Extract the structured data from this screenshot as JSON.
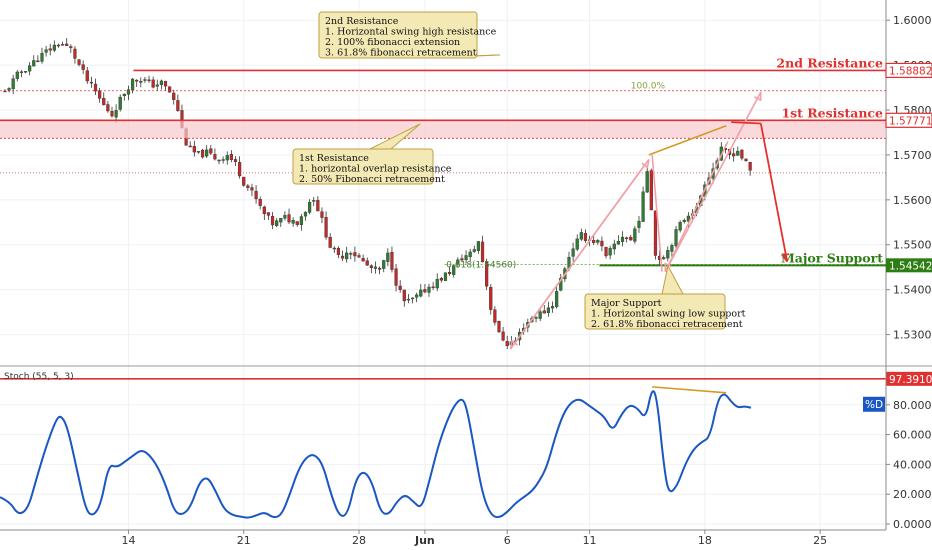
{
  "chart_data": [
    {
      "type": "candlestick",
      "panel": "price",
      "ylim": [
        1.523,
        1.6045
      ],
      "y_ticks": [
        1.53,
        1.54,
        1.55,
        1.56,
        1.57,
        1.58,
        1.59,
        1.6
      ],
      "y_tick_labels": [
        "1.53000",
        "1.54000",
        "1.55000",
        "1.56000",
        "1.57000",
        "1.58000",
        "1.59000",
        "1.60000"
      ],
      "x_ticks": [
        {
          "label": "14",
          "day": 14
        },
        {
          "label": "21",
          "day": 21
        },
        {
          "label": "28",
          "day": 28
        },
        {
          "label": "Jun",
          "day": 32
        },
        {
          "label": "6",
          "day": 37
        },
        {
          "label": "11",
          "day": 42
        },
        {
          "label": "18",
          "day": 49
        },
        {
          "label": "25",
          "day": 56
        }
      ],
      "x_range": [
        6.2,
        60.0
      ],
      "close_path": [
        [
          6.5,
          1.584
        ],
        [
          7.3,
          1.588
        ],
        [
          8.2,
          1.5905
        ],
        [
          9.0,
          1.593
        ],
        [
          9.8,
          1.595
        ],
        [
          10.5,
          1.5935
        ],
        [
          11.0,
          1.59
        ],
        [
          11.5,
          1.5865
        ],
        [
          12.0,
          1.584
        ],
        [
          12.5,
          1.581
        ],
        [
          13.0,
          1.579
        ],
        [
          13.6,
          1.583
        ],
        [
          14.2,
          1.5865
        ],
        [
          14.8,
          1.587
        ],
        [
          15.4,
          1.5855
        ],
        [
          16.0,
          1.586
        ],
        [
          16.5,
          1.584
        ],
        [
          17.0,
          1.58
        ],
        [
          17.3,
          1.575
        ],
        [
          17.6,
          1.5715
        ],
        [
          18.2,
          1.57
        ],
        [
          18.8,
          1.5705
        ],
        [
          19.4,
          1.569
        ],
        [
          20.0,
          1.57
        ],
        [
          20.5,
          1.568
        ],
        [
          21.0,
          1.564
        ],
        [
          21.6,
          1.561
        ],
        [
          22.2,
          1.557
        ],
        [
          22.8,
          1.5545
        ],
        [
          23.5,
          1.556
        ],
        [
          24.2,
          1.555
        ],
        [
          24.8,
          1.558
        ],
        [
          25.2,
          1.561
        ],
        [
          25.7,
          1.556
        ],
        [
          26.2,
          1.55
        ],
        [
          26.8,
          1.547
        ],
        [
          27.4,
          1.549
        ],
        [
          28.0,
          1.547
        ],
        [
          28.6,
          1.545
        ],
        [
          29.2,
          1.544
        ],
        [
          29.8,
          1.548
        ],
        [
          30.3,
          1.541
        ],
        [
          30.8,
          1.537
        ],
        [
          31.4,
          1.538
        ],
        [
          32.0,
          1.54
        ],
        [
          32.8,
          1.542
        ],
        [
          33.5,
          1.544
        ],
        [
          34.2,
          1.547
        ],
        [
          34.8,
          1.548
        ],
        [
          35.3,
          1.551
        ],
        [
          35.6,
          1.544
        ],
        [
          36.0,
          1.536
        ],
        [
          36.5,
          1.53
        ],
        [
          37.0,
          1.528
        ],
        [
          37.5,
          1.5285
        ],
        [
          38.0,
          1.532
        ],
        [
          38.6,
          1.534
        ],
        [
          39.2,
          1.535
        ],
        [
          39.8,
          1.537
        ],
        [
          40.3,
          1.543
        ],
        [
          40.9,
          1.549
        ],
        [
          41.5,
          1.552
        ],
        [
          42.1,
          1.551
        ],
        [
          42.6,
          1.5505
        ],
        [
          43.0,
          1.547
        ],
        [
          43.5,
          1.55
        ],
        [
          44.0,
          1.552
        ],
        [
          44.5,
          1.551
        ],
        [
          45.0,
          1.556
        ],
        [
          45.3,
          1.562
        ],
        [
          45.6,
          1.569
        ],
        [
          45.9,
          1.548
        ],
        [
          46.3,
          1.547
        ],
        [
          46.8,
          1.549
        ],
        [
          47.4,
          1.554
        ],
        [
          48.0,
          1.557
        ],
        [
          48.5,
          1.558
        ],
        [
          49.0,
          1.564
        ],
        [
          49.5,
          1.567
        ],
        [
          50.0,
          1.571
        ],
        [
          50.5,
          1.57
        ],
        [
          51.0,
          1.571
        ],
        [
          51.5,
          1.568
        ],
        [
          51.8,
          1.566
        ]
      ]
    },
    {
      "type": "line",
      "panel": "oscillator",
      "title": "Stoch (55, 5, 3)",
      "ylim": [
        -4,
        106
      ],
      "y_ticks": [
        0,
        20,
        40,
        60,
        80
      ],
      "y_tick_labels": [
        "0.0000",
        "20.0000",
        "40.0000",
        "60.0000",
        "80.0000"
      ],
      "series": [
        {
          "name": "%D",
          "color": "#1a56c4",
          "points": [
            [
              6.2,
              18
            ],
            [
              6.8,
              15
            ],
            [
              7.3,
              6
            ],
            [
              7.9,
              10
            ],
            [
              8.4,
              30
            ],
            [
              9.0,
              52
            ],
            [
              9.6,
              70
            ],
            [
              9.9,
              73
            ],
            [
              10.3,
              65
            ],
            [
              10.9,
              35
            ],
            [
              11.4,
              10
            ],
            [
              11.8,
              5
            ],
            [
              12.3,
              12
            ],
            [
              12.8,
              40
            ],
            [
              13.3,
              38
            ],
            [
              13.8,
              42
            ],
            [
              14.3,
              46
            ],
            [
              14.8,
              50
            ],
            [
              15.3,
              46
            ],
            [
              15.8,
              38
            ],
            [
              16.3,
              25
            ],
            [
              16.8,
              8
            ],
            [
              17.3,
              6
            ],
            [
              17.8,
              12
            ],
            [
              18.3,
              28
            ],
            [
              18.8,
              32
            ],
            [
              19.3,
              22
            ],
            [
              19.8,
              10
            ],
            [
              20.3,
              6
            ],
            [
              20.8,
              5
            ],
            [
              21.3,
              4
            ],
            [
              21.8,
              6
            ],
            [
              22.3,
              8
            ],
            [
              22.8,
              4
            ],
            [
              23.3,
              6
            ],
            [
              23.8,
              20
            ],
            [
              24.3,
              36
            ],
            [
              24.8,
              45
            ],
            [
              25.3,
              47
            ],
            [
              25.8,
              40
            ],
            [
              26.3,
              20
            ],
            [
              26.8,
              5
            ],
            [
              27.3,
              6
            ],
            [
              27.8,
              30
            ],
            [
              28.3,
              36
            ],
            [
              28.8,
              28
            ],
            [
              29.3,
              8
            ],
            [
              29.8,
              6
            ],
            [
              30.3,
              15
            ],
            [
              30.8,
              20
            ],
            [
              31.3,
              15
            ],
            [
              31.8,
              10
            ],
            [
              32.3,
              30
            ],
            [
              32.8,
              52
            ],
            [
              33.3,
              68
            ],
            [
              33.8,
              80
            ],
            [
              34.3,
              85
            ],
            [
              34.6,
              75
            ],
            [
              35.0,
              50
            ],
            [
              35.5,
              20
            ],
            [
              36.0,
              6
            ],
            [
              36.5,
              4
            ],
            [
              37.0,
              8
            ],
            [
              37.5,
              14
            ],
            [
              38.0,
              18
            ],
            [
              38.5,
              22
            ],
            [
              38.9,
              28
            ],
            [
              39.4,
              38
            ],
            [
              39.9,
              58
            ],
            [
              40.4,
              74
            ],
            [
              40.9,
              82
            ],
            [
              41.4,
              84
            ],
            [
              41.9,
              80
            ],
            [
              42.4,
              76
            ],
            [
              42.9,
              72
            ],
            [
              43.4,
              62
            ],
            [
              43.9,
              73
            ],
            [
              44.4,
              80
            ],
            [
              44.9,
              78
            ],
            [
              45.4,
              70
            ],
            [
              45.8,
              92
            ],
            [
              46.1,
              84
            ],
            [
              46.5,
              40
            ],
            [
              46.8,
              20
            ],
            [
              47.3,
              25
            ],
            [
              47.8,
              40
            ],
            [
              48.3,
              50
            ],
            [
              48.8,
              55
            ],
            [
              49.3,
              58
            ],
            [
              49.8,
              84
            ],
            [
              50.2,
              88
            ],
            [
              50.6,
              82
            ],
            [
              51.0,
              78
            ],
            [
              51.4,
              79
            ],
            [
              51.8,
              78
            ]
          ]
        }
      ]
    }
  ],
  "levels": {
    "resistance2": {
      "value": 1.58882,
      "label": "2nd Resistance",
      "tag": "1.58882"
    },
    "resistance1": {
      "value": 1.57771,
      "zone_low": 1.5737,
      "label": "1st Resistance",
      "tag": "1.57771"
    },
    "support": {
      "value": 1.54542,
      "label": "Major Support",
      "tag": "1.54542"
    },
    "fib100": {
      "value": 1.5843,
      "label": "100.0%"
    },
    "fib618": {
      "value": 1.5456,
      "label": "0.618(1.54560)"
    },
    "current": {
      "value": 1.566
    },
    "stoch_level": {
      "value": 97.391,
      "tag": "97.3910"
    },
    "stoch_badge": "%D"
  },
  "annotations": {
    "resistance2_box": [
      "2nd Resistance",
      "1. Horizontal swing high resistance",
      "2. 100% fibonacci extension",
      "3. 61.8% fibonacci retracement"
    ],
    "resistance1_box": [
      "1st Resistance",
      "1. horizontal overlap resistance",
      "2. 50% Fibonacci retracement"
    ],
    "support_box": [
      "Major Support",
      "1. Horizontal swing low support",
      "2. 61.8% fibonacci retracement"
    ]
  },
  "colors": {
    "resistance": "#e03030",
    "support": "#2e7d14",
    "up_candle": "#2e7d32",
    "down_candle": "#c62828",
    "stoch_line": "#1a56c4",
    "arrow": "#e8302a",
    "projection": "#f2a0a8",
    "divergence": "#d49a20",
    "callout_fill": "#f3e9b4",
    "callout_border": "#c0a040"
  }
}
